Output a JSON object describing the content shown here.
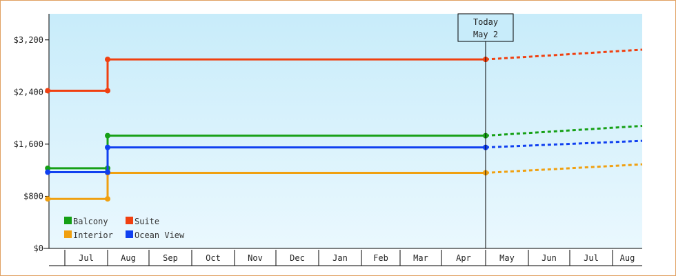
{
  "chart_data": {
    "type": "line",
    "step": true,
    "ylim": [
      0,
      3600
    ],
    "yticks": [
      {
        "value": 0,
        "label": "$0"
      },
      {
        "value": 800,
        "label": "$800"
      },
      {
        "value": 1600,
        "label": "$1,600"
      },
      {
        "value": 2400,
        "label": "$2,400"
      },
      {
        "value": 3200,
        "label": "$3,200"
      }
    ],
    "x_months": [
      "Jul",
      "Aug",
      "Sep",
      "Oct",
      "Nov",
      "Dec",
      "Jan",
      "Feb",
      "Mar",
      "Apr",
      "May",
      "Jun",
      "Jul",
      "Aug"
    ],
    "today": {
      "line1": "Today",
      "line2": "May 2",
      "month_pos": 10.0
    },
    "series": [
      {
        "name": "Balcony",
        "color": "#16a016",
        "points": [
          {
            "m": -0.4,
            "v": 1230
          },
          {
            "m": 1.0,
            "v": 1230
          },
          {
            "m": 1.0,
            "v": 1730
          },
          {
            "m": 10.0,
            "v": 1730
          }
        ],
        "forecast": [
          {
            "m": 10.0,
            "v": 1730
          },
          {
            "m": 14.3,
            "v": 1880
          }
        ]
      },
      {
        "name": "Suite",
        "color": "#f04010",
        "points": [
          {
            "m": -0.4,
            "v": 2420
          },
          {
            "m": 1.0,
            "v": 2420
          },
          {
            "m": 1.0,
            "v": 2900
          },
          {
            "m": 10.0,
            "v": 2900
          }
        ],
        "forecast": [
          {
            "m": 10.0,
            "v": 2900
          },
          {
            "m": 14.3,
            "v": 3050
          }
        ]
      },
      {
        "name": "Interior",
        "color": "#f0a010",
        "points": [
          {
            "m": -0.4,
            "v": 760
          },
          {
            "m": 1.0,
            "v": 760
          },
          {
            "m": 1.0,
            "v": 1160
          },
          {
            "m": 10.0,
            "v": 1160
          }
        ],
        "forecast": [
          {
            "m": 10.0,
            "v": 1160
          },
          {
            "m": 14.3,
            "v": 1290
          }
        ]
      },
      {
        "name": "Ocean View",
        "color": "#1040f0",
        "points": [
          {
            "m": -0.4,
            "v": 1170
          },
          {
            "m": 1.0,
            "v": 1170
          },
          {
            "m": 1.0,
            "v": 1550
          },
          {
            "m": 10.0,
            "v": 1550
          }
        ],
        "forecast": [
          {
            "m": 10.0,
            "v": 1550
          },
          {
            "m": 14.3,
            "v": 1650
          }
        ]
      }
    ],
    "legend": [
      {
        "label": "Balcony",
        "color": "#16a016"
      },
      {
        "label": "Suite",
        "color": "#f04010"
      },
      {
        "label": "Interior",
        "color": "#f0a010"
      },
      {
        "label": "Ocean View",
        "color": "#1040f0"
      }
    ],
    "legend_position": "bottom-left",
    "background": {
      "top": "#c8ecfa",
      "bottom": "#eaf8fe"
    }
  }
}
